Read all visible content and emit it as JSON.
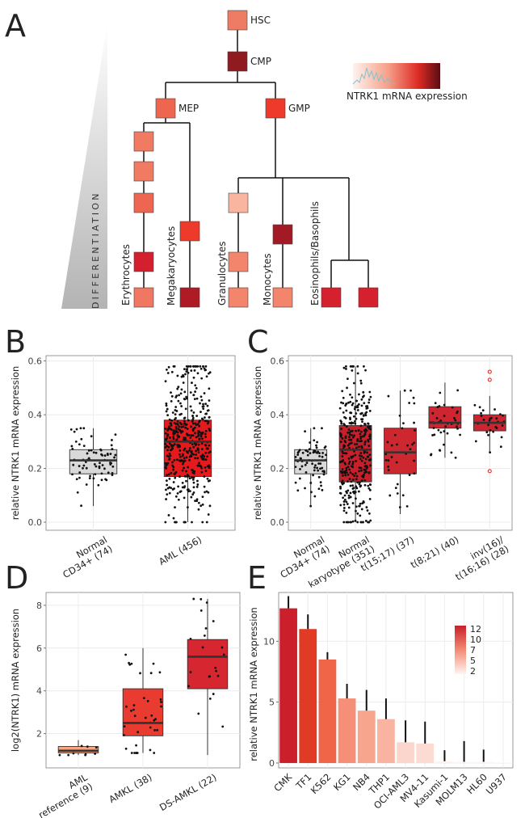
{
  "panels": {
    "A": {
      "letter": "A",
      "differentiation_label": "DIFFERENTIATION",
      "legend_label": "NTRK1 mRNA expression",
      "nodes": [
        {
          "label": "HSC",
          "color": "#ee7b63"
        },
        {
          "label": "CMP",
          "color": "#8f1a1f"
        },
        {
          "label": "MEP",
          "color": "#ef6650"
        },
        {
          "label": "GMP",
          "color": "#ee3a2a"
        },
        {
          "label": "",
          "color": "#f17a62"
        },
        {
          "label": "",
          "color": "#f17a62"
        },
        {
          "label": "",
          "color": "#ee6651"
        },
        {
          "label": "",
          "color": "#d4202e"
        },
        {
          "label": "",
          "color": "#f07761"
        },
        {
          "label": "",
          "color": "#ee3a2a"
        },
        {
          "label": "",
          "color": "#ae1b25"
        },
        {
          "label": "",
          "color": "#f9b59f"
        },
        {
          "label": "",
          "color": "#f3856d"
        },
        {
          "label": "",
          "color": "#f3856d"
        },
        {
          "label": "",
          "color": "#a21b24"
        },
        {
          "label": "",
          "color": "#f3856d"
        },
        {
          "label": "",
          "color": "#d5202d"
        },
        {
          "label": "",
          "color": "#d5202d"
        }
      ],
      "lineages": [
        "Erythrocytes",
        "Megakaryocytes",
        "Granulocytes",
        "Monocytes",
        "Eosinophils/Basophils"
      ]
    },
    "B": {
      "letter": "B"
    },
    "C": {
      "letter": "C"
    },
    "D": {
      "letter": "D"
    },
    "E": {
      "letter": "E"
    }
  },
  "chart_data": [
    {
      "panel": "B",
      "type": "box",
      "ylabel": "relative NTRK1 mRNA expression",
      "ylim": [
        -0.03,
        0.62
      ],
      "yticks": [
        0.0,
        0.2,
        0.4,
        0.6
      ],
      "ytick_labels": [
        "0.0",
        "0.2",
        "0.4",
        "0.6"
      ],
      "grid": true,
      "categories": [
        "Normal\nCD34+ (74)",
        "AML (456)"
      ],
      "boxes": [
        {
          "q1": 0.18,
          "median": 0.23,
          "q3": 0.27,
          "whisker_low": 0.06,
          "whisker_high": 0.35,
          "n": 74,
          "color": "#d9d9d9"
        },
        {
          "q1": 0.17,
          "median": 0.3,
          "q3": 0.38,
          "whisker_low": 0.0,
          "whisker_high": 0.58,
          "n": 456,
          "color": "#e41a1c"
        }
      ]
    },
    {
      "panel": "C",
      "type": "box",
      "ylabel": "relative NTRK1 mRNA expression",
      "ylim": [
        -0.03,
        0.62
      ],
      "yticks": [
        0.0,
        0.2,
        0.4,
        0.6
      ],
      "ytick_labels": [
        "0.0",
        "0.2",
        "0.4",
        "0.6"
      ],
      "grid": true,
      "categories": [
        "Normal\nCD34+ (74)",
        "Normal\nkaryotype (351)",
        "t(15;17) (37)",
        "t(8;21) (40)",
        "inv(16)/\nt(16;16) (28)"
      ],
      "boxes": [
        {
          "q1": 0.18,
          "median": 0.23,
          "q3": 0.27,
          "whisker_low": 0.06,
          "whisker_high": 0.35,
          "n": 74,
          "color": "#d9d9d9"
        },
        {
          "q1": 0.15,
          "median": 0.27,
          "q3": 0.36,
          "whisker_low": 0.0,
          "whisker_high": 0.58,
          "n": 351,
          "color": "#c8202b"
        },
        {
          "q1": 0.18,
          "median": 0.26,
          "q3": 0.35,
          "whisker_low": 0.03,
          "whisker_high": 0.49,
          "n": 37,
          "color": "#cd2730"
        },
        {
          "q1": 0.35,
          "median": 0.37,
          "q3": 0.43,
          "whisker_low": 0.24,
          "whisker_high": 0.52,
          "n": 40,
          "color": "#cf2530"
        },
        {
          "q1": 0.34,
          "median": 0.37,
          "q3": 0.4,
          "whisker_low": 0.26,
          "whisker_high": 0.47,
          "n": 28,
          "color": "#cc2530",
          "outliers": [
            0.56,
            0.53,
            0.19
          ]
        }
      ]
    },
    {
      "panel": "D",
      "type": "box",
      "ylabel": "log2(NTRK1) mRNA expression",
      "ylim": [
        0.4,
        8.6
      ],
      "yticks": [
        2,
        4,
        6,
        8
      ],
      "ytick_labels": [
        "2",
        "4",
        "6",
        "8"
      ],
      "grid": true,
      "categories": [
        "AML\nreference (9)",
        "AMKL (38)",
        "DS-AMKL (22)"
      ],
      "boxes": [
        {
          "q1": 1.1,
          "median": 1.2,
          "q3": 1.4,
          "whisker_low": 1.0,
          "whisker_high": 1.7,
          "n": 9,
          "color": "#f7a582"
        },
        {
          "q1": 1.9,
          "median": 2.5,
          "q3": 4.1,
          "whisker_low": 1.1,
          "whisker_high": 6.0,
          "n": 38,
          "color": "#e93b30"
        },
        {
          "q1": 4.1,
          "median": 5.6,
          "q3": 6.4,
          "whisker_low": 1.0,
          "whisker_high": 8.3,
          "n": 22,
          "color": "#d62630"
        }
      ]
    },
    {
      "panel": "E",
      "type": "bar",
      "ylabel": "relative NTRK1 mRNA expression",
      "ylim": [
        -0.4,
        14
      ],
      "yticks": [
        0,
        5,
        10
      ],
      "ytick_labels": [
        "0",
        "5",
        "10"
      ],
      "grid": true,
      "categories": [
        "CMK",
        "TF1",
        "K562",
        "KG1",
        "NB4",
        "THP1",
        "OCI-AML3",
        "MV4-11",
        "Kasumi-1",
        "MOLM13",
        "HL60",
        "U937"
      ],
      "values": [
        12.7,
        11.0,
        8.5,
        5.3,
        4.3,
        3.6,
        1.7,
        1.6,
        0.15,
        0.1,
        0.1,
        0.05
      ],
      "errors": [
        1.0,
        1.2,
        0.6,
        1.2,
        1.7,
        1.7,
        1.8,
        1.8,
        0.9,
        1.7,
        1.0,
        0.0
      ],
      "colors": [
        "#cb202c",
        "#e13a25",
        "#f06547",
        "#f58f77",
        "#f7a58d",
        "#f8b4a0",
        "#fbd6cc",
        "#fcdcd2",
        "#fff2ee",
        "#fff5f2",
        "#fff5f2",
        "#fff7f5"
      ],
      "colorbar": {
        "ticks": [
          "12",
          "10",
          "7",
          "5",
          "2"
        ],
        "colors": [
          "#c8202b",
          "#fff5f0"
        ]
      }
    }
  ]
}
